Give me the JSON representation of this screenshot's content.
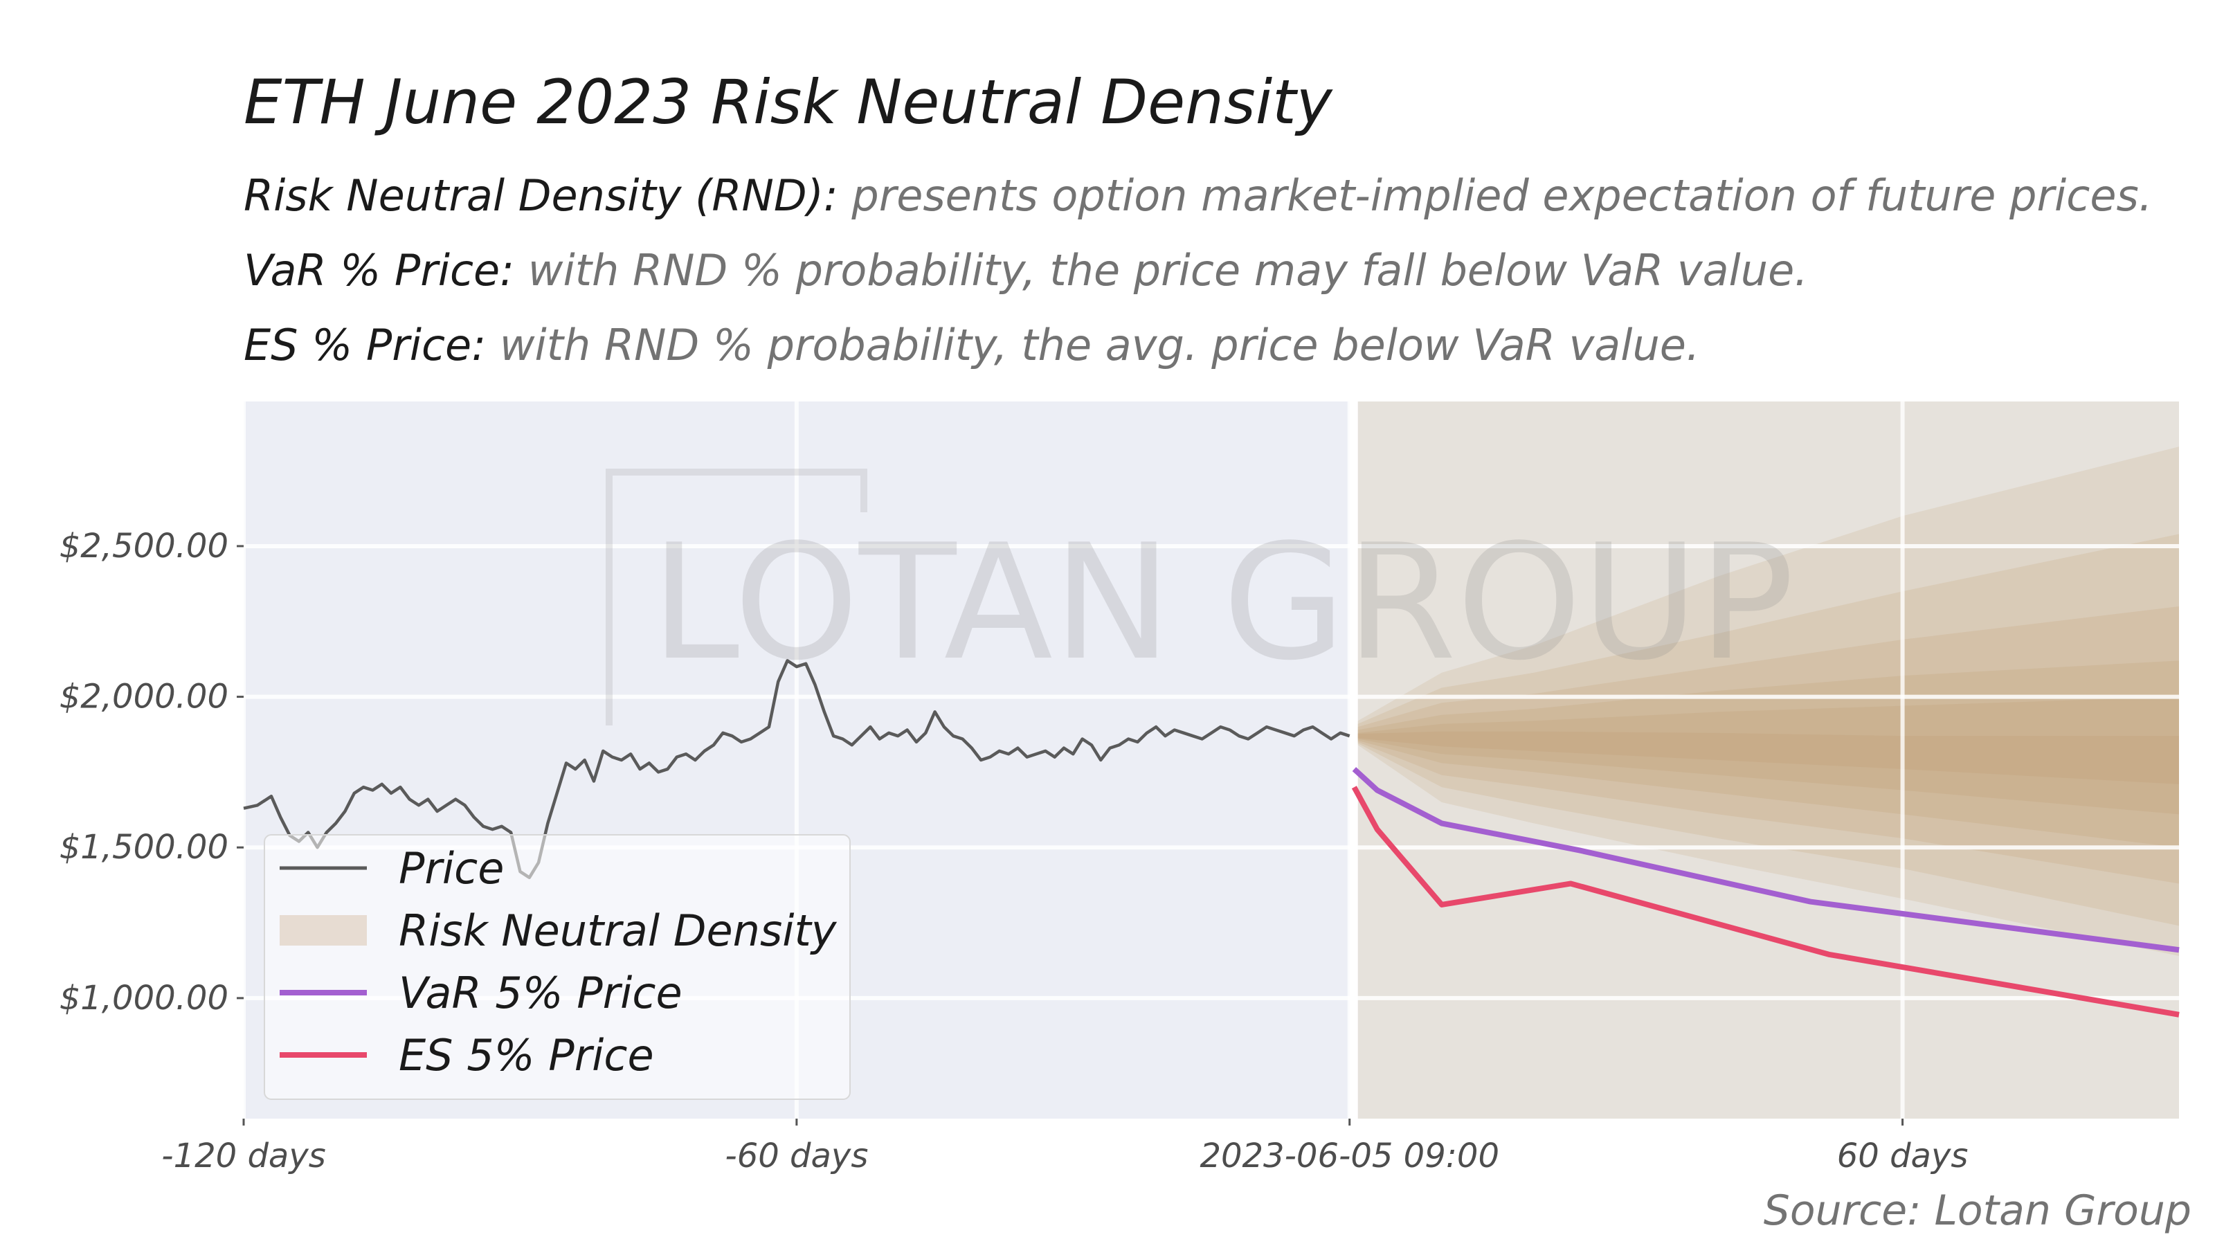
{
  "title": "ETH June 2023 Risk Neutral Density",
  "descriptions": [
    {
      "key": "Risk Neutral Density (RND):",
      "text": "presents option market-implied expectation of future prices."
    },
    {
      "key": "VaR % Price:",
      "text": "with RND % probability, the price may fall below VaR value."
    },
    {
      "key": "ES % Price:",
      "text": "with RND % probability, the avg. price below VaR value."
    }
  ],
  "watermark": "LOTAN GROUP",
  "source": "Source: Lotan Group",
  "colors": {
    "past_bg": "#eceef5",
    "future_bg": "#e6e2dc",
    "price": "#5a5a5a",
    "rnd": "#c29e75",
    "var": "#a35fd0",
    "es": "#e8486b"
  },
  "chart_data": {
    "type": "line",
    "x_unit": "days relative to 2023-06-05 09:00",
    "xlim": [
      -120,
      90
    ],
    "ylim": [
      600,
      2980
    ],
    "y_ticks": [
      {
        "value": 1000,
        "label": "$1,000.00"
      },
      {
        "value": 1500,
        "label": "$1,500.00"
      },
      {
        "value": 2000,
        "label": "$2,000.00"
      },
      {
        "value": 2500,
        "label": "$2,500.00"
      }
    ],
    "x_ticks": [
      {
        "value": -120,
        "label": "-120 days"
      },
      {
        "value": -60,
        "label": "-60 days"
      },
      {
        "value": 0,
        "label": "2023-06-05 09:00"
      },
      {
        "value": 60,
        "label": "60 days"
      }
    ],
    "grid": true,
    "legend_position": "lower-left",
    "series": [
      {
        "name": "Price",
        "type": "line",
        "x": [
          -120,
          -118.5,
          -117,
          -116,
          -115,
          -114,
          -113,
          -112,
          -111,
          -110,
          -109,
          -108,
          -107,
          -106,
          -105,
          -104,
          -103,
          -102,
          -101,
          -100,
          -99,
          -98,
          -97,
          -96,
          -95,
          -94,
          -93,
          -92,
          -91,
          -90,
          -89,
          -88,
          -87,
          -86,
          -85,
          -84,
          -83,
          -82,
          -81,
          -80,
          -79,
          -78,
          -77,
          -76,
          -75,
          -74,
          -73,
          -72,
          -71,
          -70,
          -69,
          -68,
          -67,
          -66,
          -65,
          -64,
          -63,
          -62,
          -61,
          -60,
          -59,
          -58,
          -57,
          -56,
          -55,
          -54,
          -53,
          -52,
          -51,
          -50,
          -49,
          -48,
          -47,
          -46,
          -45,
          -44,
          -43,
          -42,
          -41,
          -40,
          -39,
          -38,
          -37,
          -36,
          -35,
          -34,
          -33,
          -32,
          -31,
          -30,
          -29,
          -28,
          -27,
          -26,
          -25,
          -24,
          -23,
          -22,
          -21,
          -20,
          -19,
          -18,
          -17,
          -16,
          -15,
          -14,
          -13,
          -12,
          -11,
          -10,
          -9,
          -8,
          -7,
          -6,
          -5,
          -4,
          -3,
          -2,
          -1,
          0
        ],
        "y": [
          1630,
          1640,
          1670,
          1600,
          1540,
          1520,
          1550,
          1500,
          1550,
          1580,
          1620,
          1680,
          1700,
          1690,
          1710,
          1680,
          1700,
          1660,
          1640,
          1660,
          1620,
          1640,
          1660,
          1640,
          1600,
          1570,
          1560,
          1570,
          1550,
          1420,
          1400,
          1450,
          1580,
          1680,
          1780,
          1760,
          1790,
          1720,
          1820,
          1800,
          1790,
          1810,
          1760,
          1780,
          1750,
          1760,
          1800,
          1810,
          1790,
          1820,
          1840,
          1880,
          1870,
          1850,
          1860,
          1880,
          1900,
          2050,
          2120,
          2100,
          2110,
          2040,
          1950,
          1870,
          1860,
          1840,
          1870,
          1900,
          1860,
          1880,
          1870,
          1890,
          1850,
          1880,
          1950,
          1900,
          1870,
          1860,
          1830,
          1790,
          1800,
          1820,
          1810,
          1830,
          1800,
          1810,
          1820,
          1800,
          1830,
          1810,
          1860,
          1840,
          1790,
          1830,
          1840,
          1860,
          1850,
          1880,
          1900,
          1870,
          1890,
          1880,
          1870,
          1860,
          1880,
          1900,
          1890,
          1870,
          1860,
          1880,
          1900,
          1890,
          1880,
          1870,
          1890,
          1900,
          1880,
          1860,
          1880,
          1870
        ]
      },
      {
        "name": "Risk Neutral Density",
        "type": "band",
        "x": [
          0,
          10,
          20,
          40,
          60,
          90
        ],
        "center": [
          1870,
          1860,
          1850,
          1830,
          1810,
          1790
        ],
        "bands": [
          {
            "lo": [
              1840,
              1650,
              1580,
              1450,
              1330,
              1140
            ],
            "hi": [
              1920,
              2080,
              2170,
              2400,
              2600,
              2830
            ]
          },
          {
            "lo": [
              1845,
              1700,
              1640,
              1530,
              1430,
              1240
            ],
            "hi": [
              1910,
              2030,
              2080,
              2210,
              2350,
              2540
            ]
          },
          {
            "lo": [
              1850,
              1740,
              1700,
              1610,
              1530,
              1380
            ],
            "hi": [
              1900,
              1980,
              2010,
              2100,
              2190,
              2300
            ]
          },
          {
            "lo": [
              1855,
              1780,
              1750,
              1680,
              1610,
              1500
            ],
            "hi": [
              1890,
              1940,
              1960,
              2020,
              2070,
              2120
            ]
          },
          {
            "lo": [
              1860,
              1810,
              1790,
              1740,
              1690,
              1610
            ],
            "hi": [
              1880,
              1910,
              1920,
              1950,
              1970,
              2000
            ]
          },
          {
            "lo": [
              1863,
              1835,
              1820,
              1790,
              1760,
              1710
            ],
            "hi": [
              1877,
              1885,
              1885,
              1880,
              1870,
              1870
            ]
          }
        ]
      },
      {
        "name": "VaR 5% Price",
        "type": "line",
        "x": [
          0.5,
          3,
          10,
          25,
          50,
          90
        ],
        "y": [
          1760,
          1690,
          1580,
          1490,
          1320,
          1160
        ]
      },
      {
        "name": "ES 5% Price",
        "type": "line",
        "x": [
          0.5,
          3,
          10,
          24,
          52,
          90
        ],
        "y": [
          1700,
          1560,
          1310,
          1380,
          1145,
          945
        ]
      }
    ]
  }
}
